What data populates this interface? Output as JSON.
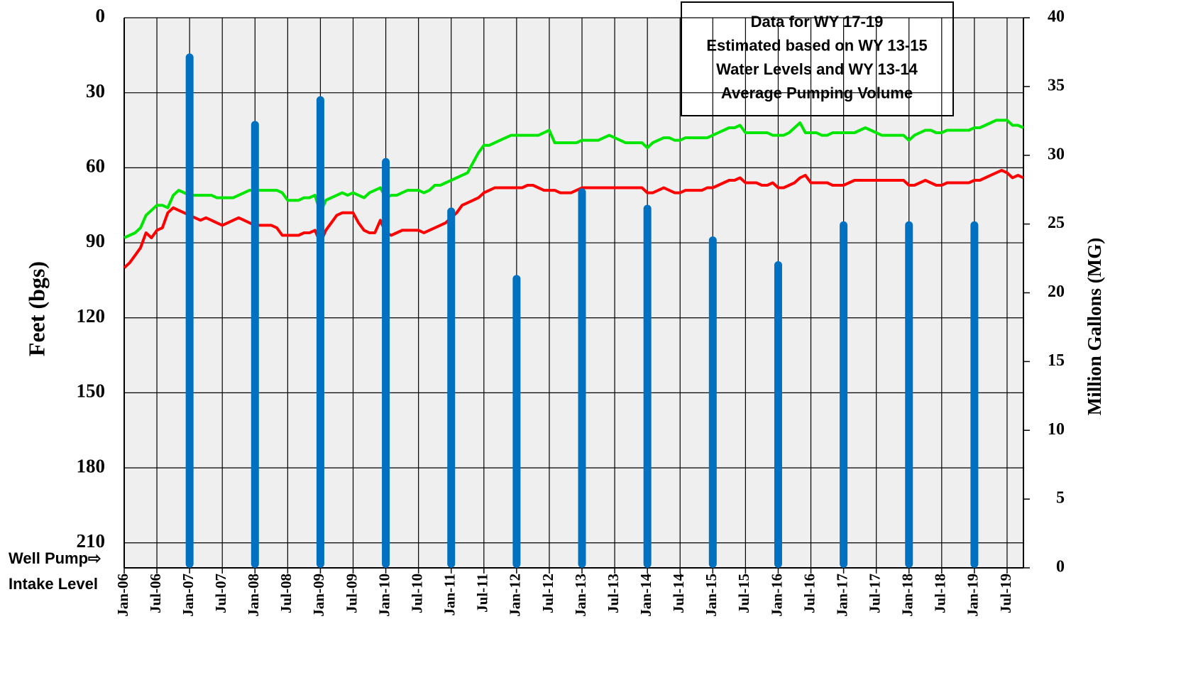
{
  "chart_data": {
    "type": "bar_line",
    "y_label": "Feet (bgs)",
    "y2_label": "Million Gallons (MG)",
    "annotation_lines": [
      "Data for WY 17-19",
      "Estimated based on WY 13-15",
      "Water Levels and  WY 13-14",
      "Average Pumping Volume"
    ],
    "left_annotation": [
      "Well Pump⇨",
      "Intake Level"
    ],
    "ylim": [
      0,
      220
    ],
    "y_inverted": true,
    "yticks": [
      0,
      30,
      60,
      90,
      120,
      150,
      180,
      210
    ],
    "y2lim": [
      0,
      40
    ],
    "y2ticks": [
      0,
      5,
      10,
      15,
      20,
      25,
      30,
      35,
      40
    ],
    "grid": true,
    "categories": [
      "Jan-06",
      null,
      null,
      null,
      null,
      null,
      "Jul-06",
      null,
      null,
      null,
      null,
      null,
      "Jan-07",
      null,
      null,
      null,
      null,
      null,
      "Jul-07",
      null,
      null,
      null,
      null,
      null,
      "Jan-08",
      null,
      null,
      null,
      null,
      null,
      "Jul-08",
      null,
      null,
      null,
      null,
      null,
      "Jan-09",
      null,
      null,
      null,
      null,
      null,
      "Jul-09",
      null,
      null,
      null,
      null,
      null,
      "Jan-10",
      null,
      null,
      null,
      null,
      null,
      "Jul-10",
      null,
      null,
      null,
      null,
      null,
      "Jan-11",
      null,
      null,
      null,
      null,
      null,
      "Jul-11",
      null,
      null,
      null,
      null,
      null,
      "Jan-12",
      null,
      null,
      null,
      null,
      null,
      "Jul-12",
      null,
      null,
      null,
      null,
      null,
      "Jan-13",
      null,
      null,
      null,
      null,
      null,
      "Jul-13",
      null,
      null,
      null,
      null,
      null,
      "Jan-14",
      null,
      null,
      null,
      null,
      null,
      "Jul-14",
      null,
      null,
      null,
      null,
      null,
      "Jan-15",
      null,
      null,
      null,
      null,
      null,
      "Jul-15",
      null,
      null,
      null,
      null,
      null,
      "Jan-16",
      null,
      null,
      null,
      null,
      null,
      "Jul-16",
      null,
      null,
      null,
      null,
      null,
      "Jan-17",
      null,
      null,
      null,
      null,
      null,
      "Jul-17",
      null,
      null,
      null,
      null,
      null,
      "Jan-18",
      null,
      null,
      null,
      null,
      null,
      "Jul-18",
      null,
      null,
      null,
      null,
      null,
      "Jan-19",
      null,
      null,
      null,
      null,
      null,
      "Jul-19",
      null,
      null,
      null
    ],
    "series": [
      {
        "type": "bar",
        "axis": "y2",
        "color": "#0070c0",
        "values": [
          null,
          null,
          null,
          null,
          null,
          null,
          null,
          null,
          null,
          null,
          null,
          null,
          37.4,
          null,
          null,
          null,
          null,
          null,
          null,
          null,
          null,
          null,
          null,
          null,
          32.5,
          null,
          null,
          null,
          null,
          null,
          null,
          null,
          null,
          null,
          null,
          null,
          34.3,
          null,
          null,
          null,
          null,
          null,
          null,
          null,
          null,
          null,
          null,
          null,
          29.8,
          null,
          null,
          null,
          null,
          null,
          null,
          null,
          null,
          null,
          null,
          null,
          26.2,
          null,
          null,
          null,
          null,
          null,
          null,
          null,
          null,
          null,
          null,
          null,
          21.3,
          null,
          null,
          null,
          null,
          null,
          null,
          null,
          null,
          null,
          null,
          null,
          27.6,
          null,
          null,
          null,
          null,
          null,
          null,
          null,
          null,
          null,
          null,
          null,
          26.4,
          null,
          null,
          null,
          null,
          null,
          null,
          null,
          null,
          null,
          null,
          null,
          24.1,
          null,
          null,
          null,
          null,
          null,
          null,
          null,
          null,
          null,
          null,
          null,
          22.3,
          null,
          null,
          null,
          null,
          null,
          null,
          null,
          null,
          null,
          null,
          null,
          25.2,
          null,
          null,
          null,
          null,
          null,
          null,
          null,
          null,
          null,
          null,
          null,
          25.2,
          null,
          null,
          null,
          null,
          null,
          null,
          null,
          null,
          null,
          null,
          null,
          25.2,
          null,
          null,
          null,
          null,
          null,
          null,
          null,
          null,
          null
        ]
      },
      {
        "type": "line",
        "color": "#ff0000",
        "values": [
          100,
          98,
          95,
          92,
          86,
          88,
          85,
          84,
          78,
          76,
          77,
          78,
          79,
          80,
          81,
          80,
          81,
          82,
          83,
          82,
          81,
          80,
          81,
          82,
          83,
          83,
          83,
          83,
          84,
          87,
          87,
          87,
          87,
          86,
          86,
          85,
          90,
          85,
          82,
          79,
          78,
          78,
          78,
          82,
          85,
          86,
          86,
          81,
          86,
          87,
          86,
          85,
          85,
          85,
          85,
          86,
          85,
          84,
          83,
          82,
          80,
          78,
          75,
          74,
          73,
          72,
          70,
          69,
          68,
          68,
          68,
          68,
          68,
          68,
          67,
          67,
          68,
          69,
          69,
          69,
          70,
          70,
          70,
          69,
          68,
          68,
          68,
          68,
          68,
          68,
          68,
          68,
          68,
          68,
          68,
          68,
          70,
          70,
          69,
          68,
          69,
          70,
          70,
          69,
          69,
          69,
          69,
          68,
          68,
          67,
          66,
          65,
          65,
          64,
          66,
          66,
          66,
          67,
          67,
          66,
          68,
          68,
          67,
          66,
          64,
          63,
          66,
          66,
          66,
          66,
          67,
          67,
          67,
          66,
          65,
          65,
          65,
          65,
          65,
          65,
          65,
          65,
          65,
          65,
          67,
          67,
          66,
          65,
          66,
          67,
          67,
          66,
          66,
          66,
          66,
          66,
          65,
          65,
          64,
          63,
          62,
          61,
          62,
          64,
          63,
          64
        ]
      },
      {
        "type": "line",
        "color": "#00e600",
        "values": [
          88,
          87,
          86,
          84,
          79,
          77,
          75,
          75,
          76,
          71,
          69,
          70,
          71,
          71,
          71,
          71,
          71,
          72,
          72,
          72,
          72,
          71,
          70,
          69,
          69,
          69,
          69,
          69,
          69,
          70,
          73,
          73,
          73,
          72,
          72,
          71,
          78,
          73,
          72,
          71,
          70,
          71,
          70,
          71,
          72,
          70,
          69,
          68,
          72,
          71,
          71,
          70,
          69,
          69,
          69,
          70,
          69,
          67,
          67,
          66,
          65,
          64,
          63,
          62,
          58,
          54,
          51,
          51,
          50,
          49,
          48,
          47,
          47,
          47,
          47,
          47,
          47,
          46,
          45,
          50,
          50,
          50,
          50,
          50,
          49,
          49,
          49,
          49,
          48,
          47,
          48,
          49,
          50,
          50,
          50,
          50,
          52,
          50,
          49,
          48,
          48,
          49,
          49,
          48,
          48,
          48,
          48,
          48,
          47,
          46,
          45,
          44,
          44,
          43,
          46,
          46,
          46,
          46,
          46,
          47,
          47,
          47,
          46,
          44,
          42,
          46,
          46,
          46,
          47,
          47,
          46,
          46,
          46,
          46,
          46,
          45,
          44,
          45,
          46,
          47,
          47,
          47,
          47,
          47,
          49,
          47,
          46,
          45,
          45,
          46,
          46,
          45,
          45,
          45,
          45,
          45,
          44,
          44,
          43,
          42,
          41,
          41,
          41,
          43,
          43,
          44
        ]
      }
    ]
  }
}
